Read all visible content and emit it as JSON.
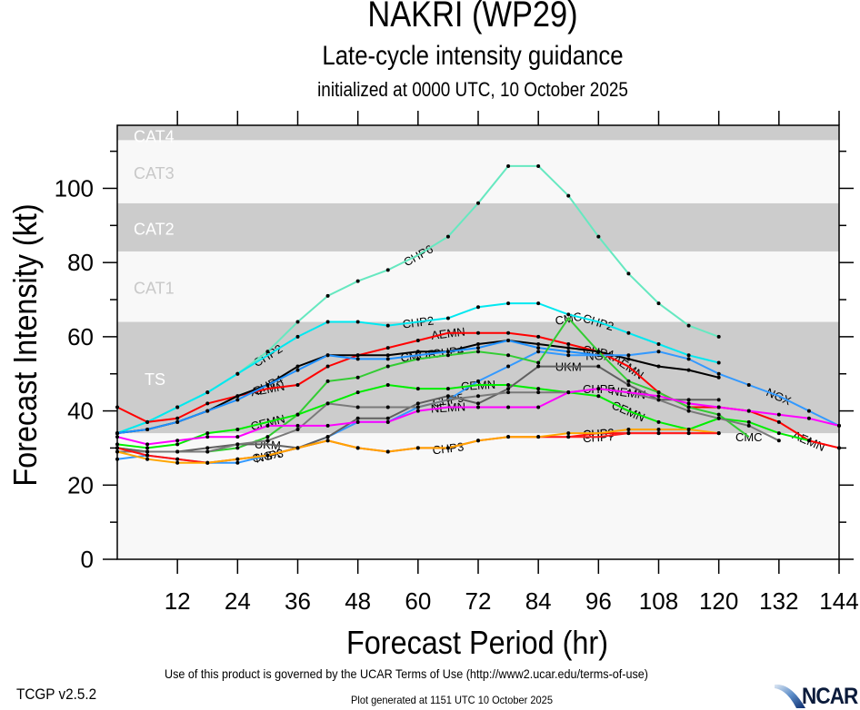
{
  "header": {
    "storm": "NAKRI (WP29)",
    "subtitle": "Late-cycle intensity guidance",
    "init": "initialized at 0000 UTC, 10 October 2025"
  },
  "footer": {
    "terms": "Use of this product is governed by the UCAR Terms of Use (http://www2.ucar.edu/terms-of-use)",
    "version": "TCGP v2.5.2",
    "generated": "Plot generated at 1151 UTC   10 October 2025",
    "logo": "NCAR"
  },
  "chart_data": {
    "type": "line",
    "title": "NAKRI (WP29)",
    "subtitle": "Late-cycle intensity guidance",
    "xlabel": "Forecast Period (hr)",
    "ylabel": "Forecast Intensity (kt)",
    "xlim": [
      0,
      144
    ],
    "ylim": [
      0,
      117
    ],
    "xticks": [
      12,
      24,
      36,
      48,
      60,
      72,
      84,
      96,
      108,
      120,
      132,
      144
    ],
    "yticks": [
      0,
      20,
      40,
      60,
      80,
      100
    ],
    "x": [
      0,
      6,
      12,
      18,
      24,
      30,
      36,
      42,
      48,
      54,
      60,
      66,
      72,
      78,
      84,
      90,
      96,
      102,
      108,
      114,
      120,
      126,
      132,
      138,
      144
    ],
    "bands": [
      {
        "name": "TS",
        "from": 34,
        "to": 64,
        "color": "#cccccc"
      },
      {
        "name": "CAT1",
        "from": 64,
        "to": 83,
        "color": "#f8f8f8"
      },
      {
        "name": "CAT2",
        "from": 83,
        "to": 96,
        "color": "#cccccc"
      },
      {
        "name": "CAT3",
        "from": 96,
        "to": 113,
        "color": "#f8f8f8"
      },
      {
        "name": "CAT4",
        "from": 113,
        "to": 137,
        "color": "#cccccc"
      }
    ],
    "below_band_color": "#f8f8f8",
    "series": [
      {
        "name": "CHP6",
        "color": "#66e8c0",
        "labels": [
          10,
          24,
          34,
          46
        ],
        "values": [
          34,
          37,
          41,
          45,
          50,
          56,
          64,
          71,
          75,
          78,
          82,
          87,
          96,
          106,
          106,
          98,
          87,
          77,
          69,
          63,
          60
        ]
      },
      {
        "name": "CHP2",
        "color": "#00e8f0",
        "labels": [
          5,
          10,
          16
        ],
        "values": [
          34,
          37,
          41,
          45,
          50,
          55,
          60,
          64,
          64,
          63,
          64,
          65,
          68,
          69,
          69,
          66,
          64,
          61,
          58,
          55,
          53
        ]
      },
      {
        "name": "AEMN",
        "color": "#ff0000",
        "labels": [
          5,
          11,
          17,
          23
        ],
        "values": [
          41,
          37,
          38,
          42,
          44,
          46,
          47,
          52,
          55,
          57,
          59,
          61,
          61,
          61,
          60,
          58,
          56,
          52,
          45,
          41,
          41,
          40,
          37,
          32,
          30
        ]
      },
      {
        "name": "CHP4",
        "color": "#000000",
        "labels": [
          5,
          11,
          16
        ],
        "values": [
          34,
          35,
          37,
          40,
          44,
          47,
          52,
          55,
          55,
          55,
          56,
          56,
          58,
          59,
          58,
          57,
          56,
          54,
          52,
          51,
          49
        ]
      },
      {
        "name": "CMOP",
        "color": "#1e90ff",
        "labels": [
          10
        ],
        "values": [
          34,
          35,
          37,
          40,
          43,
          47,
          51,
          55,
          54,
          54,
          55,
          56,
          57,
          59,
          57,
          56,
          55
        ]
      },
      {
        "name": "NGX",
        "color": "#3399ff",
        "labels": [
          5,
          16,
          22
        ],
        "values": [
          27,
          28,
          27,
          26,
          26,
          28,
          30,
          33,
          37,
          37,
          41,
          43,
          48,
          52,
          56,
          55,
          55,
          55,
          56,
          54,
          50,
          47,
          44,
          40,
          36
        ]
      },
      {
        "name": "CMC",
        "color": "#33cc33",
        "labels": [
          15,
          21
        ],
        "values": [
          30,
          29,
          29,
          29,
          30,
          33,
          39,
          48,
          49,
          52,
          54,
          55,
          56,
          55,
          53,
          65,
          56,
          48,
          45,
          41,
          39,
          33
        ]
      },
      {
        "name": "CEMN",
        "color": "#00ee00",
        "labels": [
          5,
          12,
          17
        ],
        "values": [
          31,
          30,
          31,
          34,
          35,
          37,
          39,
          42,
          45,
          47,
          46,
          46,
          47,
          47,
          46,
          45,
          44,
          40,
          37,
          35,
          38,
          37,
          34,
          32
        ]
      },
      {
        "name": "UKM",
        "color": "#606060",
        "labels": [
          5,
          15,
          22
        ],
        "values": [
          30,
          29,
          29,
          30,
          31,
          31,
          30,
          33,
          38,
          38,
          42,
          44,
          42,
          46,
          52,
          52,
          52,
          47,
          43,
          43,
          43
        ]
      },
      {
        "name": "CHP5",
        "color": "#7a7a7a",
        "labels": [
          11,
          16
        ],
        "values": [
          29,
          29,
          29,
          29,
          31,
          32,
          35,
          42,
          41,
          41,
          41,
          43,
          44,
          45,
          45,
          45,
          46,
          45,
          43,
          40,
          38,
          36,
          32
        ]
      },
      {
        "name": "NEMN",
        "color": "#ff00ff",
        "labels": [
          11,
          17
        ],
        "values": [
          33,
          31,
          32,
          33,
          33,
          36,
          36,
          36,
          37,
          37,
          40,
          41,
          41,
          41,
          41,
          45,
          46,
          45,
          44,
          42,
          41,
          40,
          39,
          38,
          36
        ]
      },
      {
        "name": "CHP3",
        "color": "#ff1010",
        "labels": [
          5,
          11,
          16
        ],
        "values": [
          30,
          28,
          27,
          26,
          27,
          28,
          30,
          32,
          30,
          29,
          30,
          30,
          32,
          33,
          33,
          33,
          34,
          34,
          34,
          34,
          34
        ]
      },
      {
        "name": "CHP9",
        "color": "#ffa500",
        "labels": [
          16
        ],
        "values": [
          29,
          27,
          26,
          26,
          27,
          28,
          30,
          32,
          30,
          29,
          30,
          30,
          32,
          33,
          33,
          34,
          34,
          35,
          35,
          35,
          34
        ]
      },
      {
        "name": "CHP7",
        "color": "#ff2020",
        "labels": [
          16
        ],
        "values": [
          null,
          null,
          null,
          null,
          null,
          null,
          null,
          null,
          null,
          null,
          null,
          null,
          null,
          null,
          null,
          33,
          33,
          34,
          34,
          34,
          34
        ]
      }
    ]
  }
}
